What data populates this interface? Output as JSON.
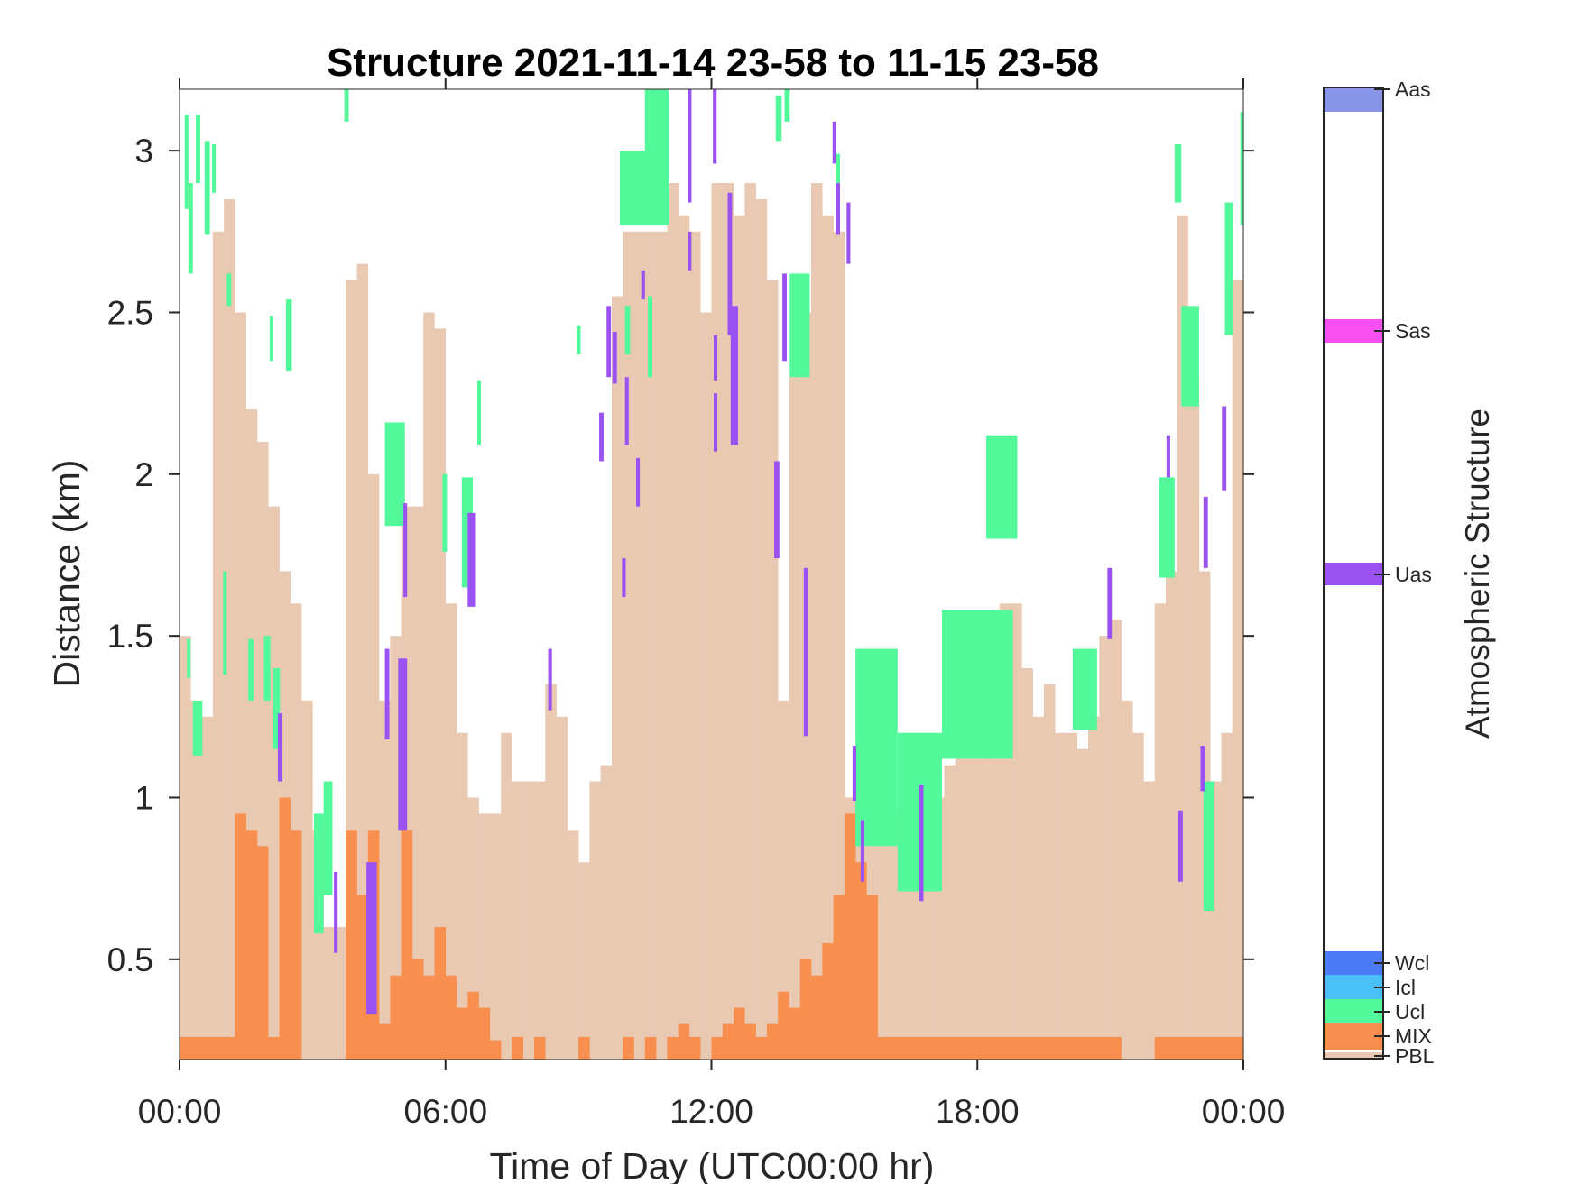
{
  "chart_data": {
    "type": "bar",
    "title": "Structure 2021-11-14 23-58 to 11-15 23-58",
    "xlabel": "Time of Day (UTC00:00 hr)",
    "ylabel": "Distance (km)",
    "colorbar_label": "Atmospheric Structure",
    "xlim": [
      "00:00",
      "24:00"
    ],
    "ylim": [
      0.19,
      3.19
    ],
    "x_ticks": [
      "00:00",
      "06:00",
      "12:00",
      "18:00",
      "00:00"
    ],
    "y_ticks": [
      "0.5",
      "1",
      "1.5",
      "2",
      "2.5",
      "3"
    ],
    "grid": false,
    "legend": "colorbar-right",
    "classes": [
      {
        "name": "PBL",
        "color": "#e9c9b2"
      },
      {
        "name": "MIX",
        "color": "#f88f4f"
      },
      {
        "name": "Ucl",
        "color": "#52f99a"
      },
      {
        "name": "Icl",
        "color": "#4bc0f8"
      },
      {
        "name": "Wcl",
        "color": "#4d7af5"
      },
      {
        "name": "Uas",
        "color": "#9a52f2"
      },
      {
        "name": "Sas",
        "color": "#f84ff0"
      },
      {
        "name": "Aas",
        "color": "#8895e8"
      }
    ],
    "time": [
      "00:00",
      "00:15",
      "00:30",
      "00:45",
      "01:00",
      "01:15",
      "01:30",
      "01:45",
      "02:00",
      "02:15",
      "02:30",
      "02:45",
      "03:00",
      "03:15",
      "03:30",
      "03:45",
      "04:00",
      "04:15",
      "04:30",
      "04:45",
      "05:00",
      "05:15",
      "05:30",
      "05:45",
      "06:00",
      "06:15",
      "06:30",
      "06:45",
      "07:00",
      "07:15",
      "07:30",
      "07:45",
      "08:00",
      "08:15",
      "08:30",
      "08:45",
      "09:00",
      "09:15",
      "09:30",
      "09:45",
      "10:00",
      "10:15",
      "10:30",
      "10:45",
      "11:00",
      "11:15",
      "11:30",
      "11:45",
      "12:00",
      "12:15",
      "12:30",
      "12:45",
      "13:00",
      "13:15",
      "13:30",
      "13:45",
      "14:00",
      "14:15",
      "14:30",
      "14:45",
      "15:00",
      "15:15",
      "15:30",
      "15:45",
      "16:00",
      "16:15",
      "16:30",
      "16:45",
      "17:00",
      "17:15",
      "17:30",
      "17:45",
      "18:00",
      "18:15",
      "18:30",
      "18:45",
      "19:00",
      "19:15",
      "19:30",
      "19:45",
      "20:00",
      "20:15",
      "20:30",
      "20:45",
      "21:00",
      "21:15",
      "21:30",
      "21:45",
      "22:00",
      "22:15",
      "22:30",
      "22:45",
      "23:00",
      "23:15",
      "23:30",
      "23:45"
    ],
    "pbl_top_km": [
      1.5,
      1.3,
      1.25,
      2.75,
      2.85,
      2.5,
      2.2,
      2.1,
      1.9,
      1.7,
      1.6,
      1.3,
      0.9,
      0.6,
      0.6,
      2.6,
      2.65,
      2.0,
      1.3,
      1.5,
      1.9,
      1.9,
      2.5,
      2.45,
      1.6,
      1.2,
      1.0,
      0.95,
      0.95,
      1.2,
      1.05,
      1.05,
      1.05,
      1.35,
      1.25,
      0.9,
      0.8,
      1.05,
      1.1,
      2.55,
      2.75,
      2.75,
      2.75,
      2.75,
      2.9,
      2.8,
      2.75,
      2.5,
      2.9,
      2.9,
      2.8,
      2.9,
      2.85,
      2.6,
      1.3,
      2.3,
      2.5,
      2.9,
      2.8,
      2.75,
      1.0,
      0.95,
      1.0,
      0.95,
      0.95,
      0.95,
      1.0,
      1.05,
      1.0,
      1.1,
      1.2,
      1.2,
      1.25,
      1.3,
      1.6,
      1.6,
      1.4,
      1.25,
      1.35,
      1.2,
      1.2,
      1.15,
      1.25,
      1.5,
      1.55,
      1.3,
      1.2,
      1.05,
      1.6,
      1.7,
      2.8,
      2.3,
      1.7,
      1.05,
      1.2,
      2.6
    ],
    "mix_top_km": [
      0.26,
      0.26,
      0.26,
      0.26,
      0.26,
      0.95,
      0.9,
      0.85,
      0.26,
      1.0,
      0.9,
      0,
      0,
      0,
      0,
      0.9,
      0.7,
      0.9,
      0.3,
      0.45,
      0.9,
      0.5,
      0.45,
      0.6,
      0.45,
      0.35,
      0.4,
      0.35,
      0.25,
      0,
      0.26,
      0,
      0.26,
      0,
      0,
      0,
      0.26,
      0,
      0,
      0,
      0.26,
      0,
      0.26,
      0,
      0.26,
      0.3,
      0.26,
      0,
      0.26,
      0.3,
      0.35,
      0.3,
      0.26,
      0.3,
      0.4,
      0.35,
      0.5,
      0.45,
      0.55,
      0.7,
      0.95,
      0.8,
      0.7,
      0.26,
      0.26,
      0.26,
      0.26,
      0.26,
      0.26,
      0.26,
      0.26,
      0.26,
      0.26,
      0.26,
      0.26,
      0.26,
      0.26,
      0.26,
      0.26,
      0.26,
      0.26,
      0.26,
      0.26,
      0.26,
      0.26,
      0,
      0,
      0,
      0.26,
      0.26,
      0.26,
      0.26,
      0.26,
      0.26,
      0.26,
      0.26
    ],
    "layers": [
      {
        "class": "Ucl",
        "start": "00:07",
        "end": "00:12",
        "base": 2.82,
        "top": 3.11
      },
      {
        "class": "Ucl",
        "start": "00:12",
        "end": "00:18",
        "base": 2.62,
        "top": 2.9
      },
      {
        "class": "Ucl",
        "start": "00:22",
        "end": "00:28",
        "base": 2.9,
        "top": 3.11
      },
      {
        "class": "Ucl",
        "start": "00:34",
        "end": "00:41",
        "base": 2.74,
        "top": 3.03
      },
      {
        "class": "Ucl",
        "start": "00:44",
        "end": "00:49",
        "base": 2.87,
        "top": 3.02
      },
      {
        "class": "Ucl",
        "start": "00:10",
        "end": "00:14",
        "base": 1.37,
        "top": 1.49
      },
      {
        "class": "Ucl",
        "start": "00:18",
        "end": "00:31",
        "base": 1.13,
        "top": 1.3
      },
      {
        "class": "Ucl",
        "start": "00:59",
        "end": "01:03",
        "base": 1.38,
        "top": 1.7
      },
      {
        "class": "Ucl",
        "start": "01:04",
        "end": "01:10",
        "base": 2.52,
        "top": 2.62
      },
      {
        "class": "Ucl",
        "start": "01:33",
        "end": "01:40",
        "base": 1.3,
        "top": 1.49
      },
      {
        "class": "Ucl",
        "start": "01:54",
        "end": "02:03",
        "base": 1.3,
        "top": 1.5
      },
      {
        "class": "Ucl",
        "start": "02:02",
        "end": "02:06",
        "base": 2.35,
        "top": 2.49
      },
      {
        "class": "Ucl",
        "start": "02:24",
        "end": "02:32",
        "base": 2.32,
        "top": 2.54
      },
      {
        "class": "Ucl",
        "start": "02:07",
        "end": "02:16",
        "base": 1.15,
        "top": 1.4
      },
      {
        "class": "Ucl",
        "start": "03:02",
        "end": "03:15",
        "base": 0.58,
        "top": 0.95
      },
      {
        "class": "Ucl",
        "start": "03:15",
        "end": "03:27",
        "base": 0.7,
        "top": 1.05
      },
      {
        "class": "Ucl",
        "start": "03:43",
        "end": "03:49",
        "base": 3.09,
        "top": 3.19
      },
      {
        "class": "Ucl",
        "start": "04:38",
        "end": "05:05",
        "base": 1.84,
        "top": 2.16
      },
      {
        "class": "Ucl",
        "start": "05:56",
        "end": "06:02",
        "base": 1.76,
        "top": 2.0
      },
      {
        "class": "Ucl",
        "start": "06:22",
        "end": "06:37",
        "base": 1.65,
        "top": 1.99
      },
      {
        "class": "Ucl",
        "start": "06:43",
        "end": "06:48",
        "base": 2.09,
        "top": 2.29
      },
      {
        "class": "Ucl",
        "start": "08:58",
        "end": "09:02",
        "base": 2.37,
        "top": 2.46
      },
      {
        "class": "Ucl",
        "start": "09:56",
        "end": "11:02",
        "base": 2.77,
        "top": 3.0
      },
      {
        "class": "Ucl",
        "start": "10:30",
        "end": "11:02",
        "base": 2.85,
        "top": 3.19
      },
      {
        "class": "Ucl",
        "start": "10:03",
        "end": "10:10",
        "base": 2.37,
        "top": 2.52
      },
      {
        "class": "Ucl",
        "start": "10:34",
        "end": "10:40",
        "base": 2.3,
        "top": 2.55
      },
      {
        "class": "Ucl",
        "start": "13:27",
        "end": "13:35",
        "base": 3.03,
        "top": 3.17
      },
      {
        "class": "Ucl",
        "start": "13:39",
        "end": "13:46",
        "base": 3.09,
        "top": 3.19
      },
      {
        "class": "Ucl",
        "start": "13:46",
        "end": "14:13",
        "base": 2.3,
        "top": 2.62
      },
      {
        "class": "Ucl",
        "start": "14:48",
        "end": "14:54",
        "base": 2.74,
        "top": 2.99
      },
      {
        "class": "Ucl",
        "start": "15:15",
        "end": "16:12",
        "base": 0.85,
        "top": 1.46
      },
      {
        "class": "Ucl",
        "start": "16:12",
        "end": "17:12",
        "base": 0.71,
        "top": 1.2
      },
      {
        "class": "Ucl",
        "start": "17:12",
        "end": "18:48",
        "base": 1.12,
        "top": 1.58
      },
      {
        "class": "Ucl",
        "start": "18:12",
        "end": "18:54",
        "base": 1.8,
        "top": 2.12
      },
      {
        "class": "Ucl",
        "start": "20:09",
        "end": "20:42",
        "base": 1.21,
        "top": 1.46
      },
      {
        "class": "Ucl",
        "start": "22:06",
        "end": "22:27",
        "base": 1.68,
        "top": 1.99
      },
      {
        "class": "Ucl",
        "start": "22:27",
        "end": "22:36",
        "base": 2.84,
        "top": 3.02
      },
      {
        "class": "Ucl",
        "start": "22:36",
        "end": "23:00",
        "base": 2.21,
        "top": 2.52
      },
      {
        "class": "Ucl",
        "start": "23:06",
        "end": "23:21",
        "base": 0.65,
        "top": 1.05
      },
      {
        "class": "Ucl",
        "start": "23:35",
        "end": "23:46",
        "base": 2.43,
        "top": 2.84
      },
      {
        "class": "Ucl",
        "start": "23:56",
        "end": "24:00",
        "base": 2.77,
        "top": 3.12
      },
      {
        "class": "Uas",
        "start": "02:13",
        "end": "02:19",
        "base": 1.05,
        "top": 1.26
      },
      {
        "class": "Uas",
        "start": "03:29",
        "end": "03:34",
        "base": 0.52,
        "top": 0.77
      },
      {
        "class": "Uas",
        "start": "04:13",
        "end": "04:27",
        "base": 0.33,
        "top": 0.8
      },
      {
        "class": "Uas",
        "start": "04:38",
        "end": "04:44",
        "base": 1.18,
        "top": 1.46
      },
      {
        "class": "Uas",
        "start": "04:56",
        "end": "05:08",
        "base": 0.9,
        "top": 1.43
      },
      {
        "class": "Uas",
        "start": "05:03",
        "end": "05:08",
        "base": 1.62,
        "top": 1.91
      },
      {
        "class": "Uas",
        "start": "06:30",
        "end": "06:40",
        "base": 1.59,
        "top": 1.88
      },
      {
        "class": "Uas",
        "start": "08:19",
        "end": "08:24",
        "base": 1.27,
        "top": 1.46
      },
      {
        "class": "Uas",
        "start": "09:28",
        "end": "09:34",
        "base": 2.04,
        "top": 2.19
      },
      {
        "class": "Uas",
        "start": "09:38",
        "end": "09:44",
        "base": 2.3,
        "top": 2.52
      },
      {
        "class": "Uas",
        "start": "09:46",
        "end": "09:52",
        "base": 2.28,
        "top": 2.44
      },
      {
        "class": "Uas",
        "start": "09:59",
        "end": "10:04",
        "base": 1.62,
        "top": 1.74
      },
      {
        "class": "Uas",
        "start": "10:03",
        "end": "10:08",
        "base": 2.09,
        "top": 2.3
      },
      {
        "class": "Uas",
        "start": "10:18",
        "end": "10:23",
        "base": 1.9,
        "top": 2.05
      },
      {
        "class": "Uas",
        "start": "10:25",
        "end": "10:30",
        "base": 2.54,
        "top": 2.63
      },
      {
        "class": "Uas",
        "start": "11:28",
        "end": "11:33",
        "base": 2.84,
        "top": 3.19
      },
      {
        "class": "Uas",
        "start": "11:28",
        "end": "11:33",
        "base": 2.63,
        "top": 2.75
      },
      {
        "class": "Uas",
        "start": "12:02",
        "end": "12:07",
        "base": 2.96,
        "top": 3.19
      },
      {
        "class": "Uas",
        "start": "12:03",
        "end": "12:08",
        "base": 2.29,
        "top": 2.43
      },
      {
        "class": "Uas",
        "start": "12:03",
        "end": "12:08",
        "base": 2.07,
        "top": 2.25
      },
      {
        "class": "Uas",
        "start": "12:22",
        "end": "12:28",
        "base": 2.43,
        "top": 2.87
      },
      {
        "class": "Uas",
        "start": "12:26",
        "end": "12:36",
        "base": 2.09,
        "top": 2.52
      },
      {
        "class": "Uas",
        "start": "13:25",
        "end": "13:32",
        "base": 1.74,
        "top": 2.04
      },
      {
        "class": "Uas",
        "start": "13:36",
        "end": "13:42",
        "base": 2.35,
        "top": 2.62
      },
      {
        "class": "Uas",
        "start": "14:05",
        "end": "14:11",
        "base": 1.19,
        "top": 1.71
      },
      {
        "class": "Uas",
        "start": "14:44",
        "end": "14:49",
        "base": 2.96,
        "top": 3.09
      },
      {
        "class": "Uas",
        "start": "14:48",
        "end": "14:54",
        "base": 2.74,
        "top": 2.9
      },
      {
        "class": "Uas",
        "start": "15:03",
        "end": "15:08",
        "base": 2.65,
        "top": 2.84
      },
      {
        "class": "Uas",
        "start": "15:11",
        "end": "15:16",
        "base": 0.99,
        "top": 1.16
      },
      {
        "class": "Uas",
        "start": "15:22",
        "end": "15:27",
        "base": 0.74,
        "top": 0.93
      },
      {
        "class": "Uas",
        "start": "16:41",
        "end": "16:47",
        "base": 0.68,
        "top": 1.04
      },
      {
        "class": "Uas",
        "start": "20:56",
        "end": "21:02",
        "base": 1.49,
        "top": 1.71
      },
      {
        "class": "Uas",
        "start": "22:16",
        "end": "22:21",
        "base": 1.99,
        "top": 2.12
      },
      {
        "class": "Uas",
        "start": "22:32",
        "end": "22:38",
        "base": 0.74,
        "top": 0.96
      },
      {
        "class": "Uas",
        "start": "23:02",
        "end": "23:08",
        "base": 1.02,
        "top": 1.16
      },
      {
        "class": "Uas",
        "start": "23:06",
        "end": "23:12",
        "base": 1.71,
        "top": 1.93
      },
      {
        "class": "Uas",
        "start": "23:31",
        "end": "23:37",
        "base": 1.95,
        "top": 2.21
      }
    ]
  }
}
